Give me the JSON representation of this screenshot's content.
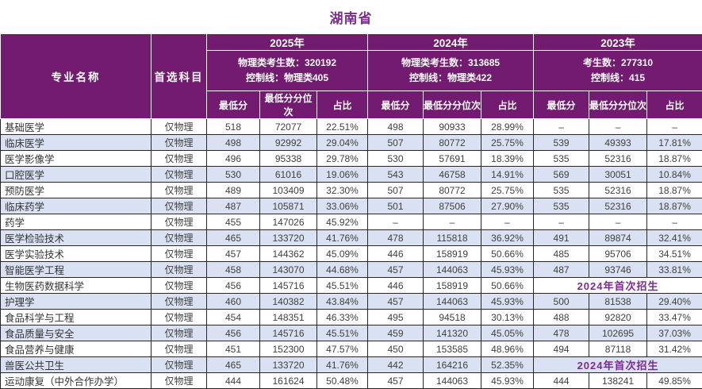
{
  "title": "湖南省",
  "columns": {
    "specialty": "专业名称",
    "subject": "首选科目",
    "sub": [
      "最低分",
      "最低分分位次",
      "占比"
    ]
  },
  "years": [
    {
      "label": "2025年",
      "info1": "物理类考生数：320192",
      "info2": "控制线：物理类405"
    },
    {
      "label": "2024年",
      "info1": "物理类考生数：313685",
      "info2": "控制线：物理类422"
    },
    {
      "label": "2023年",
      "info1": "考生数：277310",
      "info2": "控制线：415"
    }
  ],
  "first_enrollment_note": "2024年首次招生",
  "empty_value": "–",
  "colors": {
    "header_purple": "#721b70",
    "title_purple": "#7b2d8e",
    "alt_row_blue": "#d9e1f2",
    "note_purple": "#7b2d8e"
  },
  "rows": [
    {
      "name": "基础医学",
      "subject": "仅物理",
      "y2025": [
        "518",
        "72077",
        "22.51%"
      ],
      "y2024": [
        "498",
        "90933",
        "28.99%"
      ],
      "y2023": [
        "–",
        "–",
        "–"
      ]
    },
    {
      "name": "临床医学",
      "subject": "仅物理",
      "y2025": [
        "498",
        "92992",
        "29.04%"
      ],
      "y2024": [
        "507",
        "80772",
        "25.75%"
      ],
      "y2023": [
        "539",
        "49393",
        "17.81%"
      ]
    },
    {
      "name": "医学影像学",
      "subject": "仅物理",
      "y2025": [
        "496",
        "95338",
        "29.78%"
      ],
      "y2024": [
        "530",
        "57691",
        "18.39%"
      ],
      "y2023": [
        "535",
        "52316",
        "18.87%"
      ]
    },
    {
      "name": "口腔医学",
      "subject": "仅物理",
      "y2025": [
        "530",
        "61016",
        "19.06%"
      ],
      "y2024": [
        "543",
        "46758",
        "14.91%"
      ],
      "y2023": [
        "569",
        "30051",
        "10.84%"
      ]
    },
    {
      "name": "预防医学",
      "subject": "仅物理",
      "y2025": [
        "489",
        "103409",
        "32.30%"
      ],
      "y2024": [
        "507",
        "80772",
        "25.75%"
      ],
      "y2023": [
        "535",
        "52316",
        "18.87%"
      ]
    },
    {
      "name": "临床药学",
      "subject": "仅物理",
      "y2025": [
        "487",
        "105871",
        "33.06%"
      ],
      "y2024": [
        "501",
        "87506",
        "27.90%"
      ],
      "y2023": [
        "535",
        "52316",
        "18.87%"
      ]
    },
    {
      "name": "药学",
      "subject": "仅物理",
      "y2025": [
        "455",
        "147026",
        "45.92%"
      ],
      "y2024": [
        "–",
        "–",
        "–"
      ],
      "y2023": [
        "–",
        "–",
        "–"
      ]
    },
    {
      "name": "医学检验技术",
      "subject": "仅物理",
      "y2025": [
        "465",
        "133720",
        "41.76%"
      ],
      "y2024": [
        "478",
        "115818",
        "36.92%"
      ],
      "y2023": [
        "491",
        "89874",
        "32.41%"
      ]
    },
    {
      "name": "医学实验技术",
      "subject": "仅物理",
      "y2025": [
        "457",
        "144362",
        "45.09%"
      ],
      "y2024": [
        "446",
        "158919",
        "50.66%"
      ],
      "y2023": [
        "485",
        "95706",
        "34.51%"
      ]
    },
    {
      "name": "智能医学工程",
      "subject": "仅物理",
      "y2025": [
        "458",
        "143070",
        "44.68%"
      ],
      "y2024": [
        "457",
        "144063",
        "45.93%"
      ],
      "y2023": [
        "487",
        "93746",
        "33.81%"
      ]
    },
    {
      "name": "生物医药数据科学",
      "subject": "仅物理",
      "y2025": [
        "456",
        "145716",
        "45.51%"
      ],
      "y2024": [
        "446",
        "158919",
        "50.66%"
      ],
      "y2023": "note"
    },
    {
      "name": "护理学",
      "subject": "仅物理",
      "y2025": [
        "460",
        "140382",
        "43.84%"
      ],
      "y2024": [
        "457",
        "144063",
        "45.93%"
      ],
      "y2023": [
        "500",
        "81538",
        "29.40%"
      ]
    },
    {
      "name": "食品科学与工程",
      "subject": "仅物理",
      "y2025": [
        "454",
        "148351",
        "46.33%"
      ],
      "y2024": [
        "495",
        "94518",
        "30.13%"
      ],
      "y2023": [
        "488",
        "92820",
        "33.47%"
      ]
    },
    {
      "name": "食品质量与安全",
      "subject": "仅物理",
      "y2025": [
        "456",
        "145716",
        "45.51%"
      ],
      "y2024": [
        "459",
        "141320",
        "45.05%"
      ],
      "y2023": [
        "478",
        "102695",
        "37.03%"
      ]
    },
    {
      "name": "食品营养与健康",
      "subject": "仅物理",
      "y2025": [
        "451",
        "152300",
        "47.57%"
      ],
      "y2024": [
        "450",
        "153585",
        "48.96%"
      ],
      "y2023": [
        "494",
        "87118",
        "31.42%"
      ]
    },
    {
      "name": "兽医公共卫生",
      "subject": "仅物理",
      "y2025": [
        "465",
        "133720",
        "41.76%"
      ],
      "y2024": [
        "442",
        "164216",
        "52.35%"
      ],
      "y2023": "note"
    },
    {
      "name": "运动康复（中外合作办学）",
      "subject": "仅物理",
      "y2025": [
        "444",
        "161624",
        "50.48%"
      ],
      "y2024": [
        "457",
        "144063",
        "45.93%"
      ],
      "y2023": [
        "444",
        "138241",
        "49.85%"
      ]
    }
  ]
}
